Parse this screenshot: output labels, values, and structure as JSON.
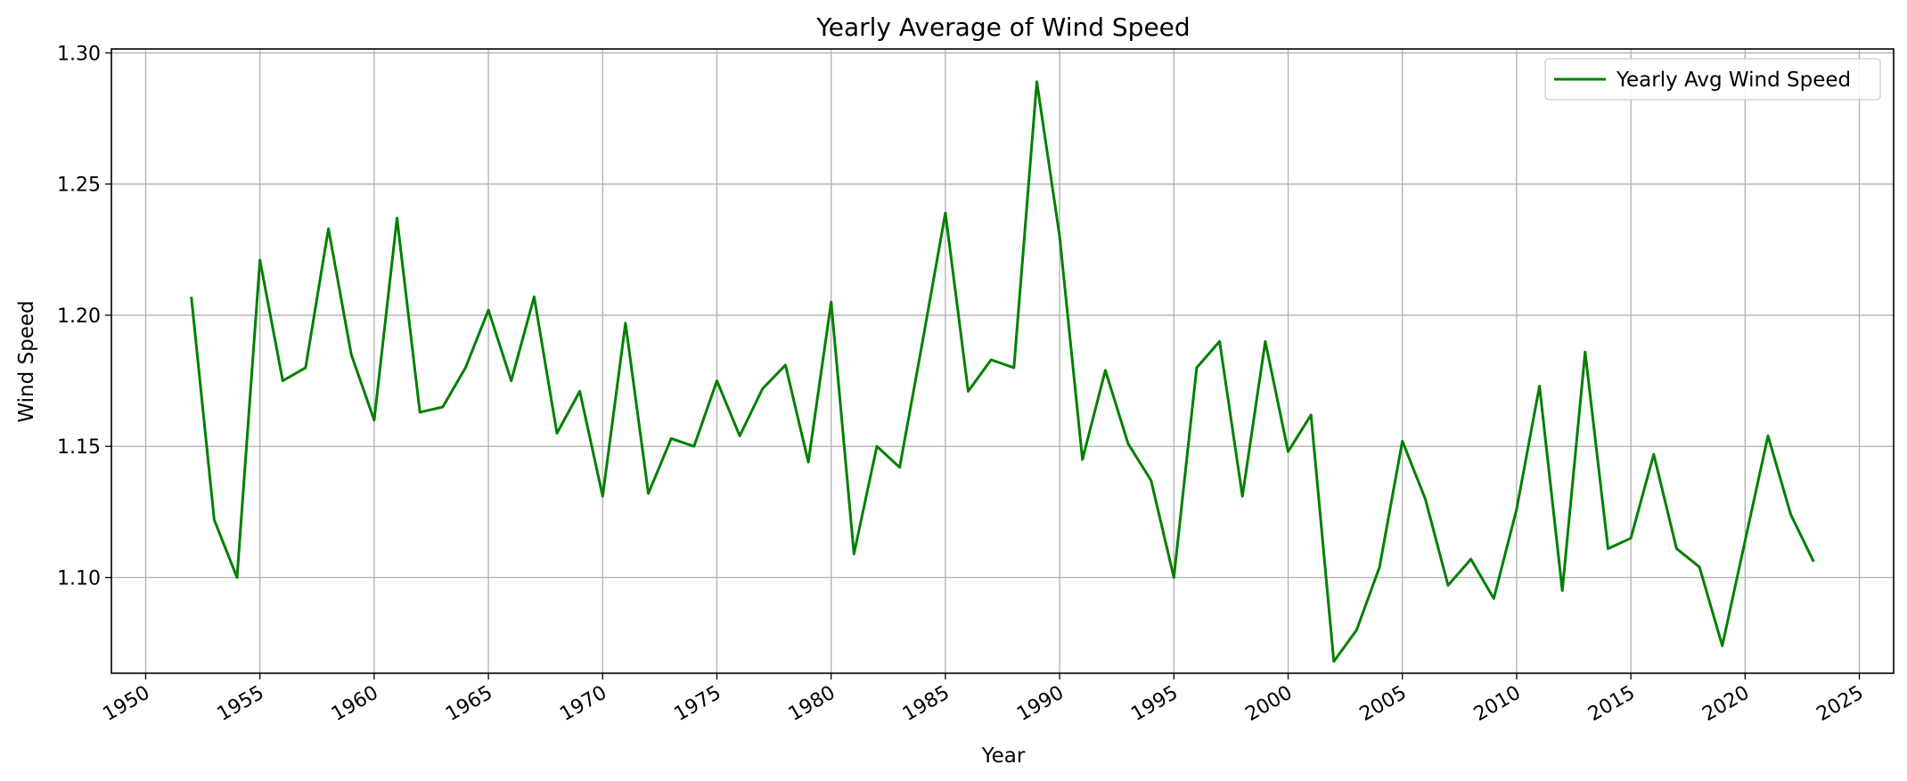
{
  "chart_data": {
    "type": "line",
    "title": "Yearly Average of Wind Speed",
    "xlabel": "Year",
    "ylabel": "Wind Speed",
    "xlim": [
      1948.5,
      2026.5
    ],
    "ylim": [
      1.0635,
      1.3015
    ],
    "xticks": [
      1950,
      1955,
      1960,
      1965,
      1970,
      1975,
      1980,
      1985,
      1990,
      1995,
      2000,
      2005,
      2010,
      2015,
      2020,
      2025
    ],
    "yticks": [
      1.1,
      1.15,
      1.2,
      1.25,
      1.3
    ],
    "ytick_labels": [
      "1.10",
      "1.15",
      "1.20",
      "1.25",
      "1.30"
    ],
    "grid": true,
    "legend_position": "top-right",
    "colors": {
      "line": "#008000",
      "grid": "#b0b0b0"
    },
    "x": [
      1952,
      1953,
      1954,
      1955,
      1956,
      1957,
      1958,
      1959,
      1960,
      1961,
      1962,
      1963,
      1964,
      1965,
      1966,
      1967,
      1968,
      1969,
      1970,
      1971,
      1972,
      1973,
      1974,
      1975,
      1976,
      1977,
      1978,
      1979,
      1980,
      1981,
      1982,
      1983,
      1984,
      1985,
      1986,
      1987,
      1988,
      1989,
      1990,
      1991,
      1992,
      1993,
      1994,
      1995,
      1996,
      1997,
      1998,
      1999,
      2000,
      2001,
      2002,
      2003,
      2004,
      2005,
      2006,
      2007,
      2008,
      2009,
      2010,
      2011,
      2012,
      2013,
      2014,
      2015,
      2016,
      2017,
      2018,
      2019,
      2020,
      2021,
      2022,
      2023
    ],
    "series": [
      {
        "name": "Yearly Avg Wind Speed",
        "values": [
          1.207,
          1.122,
          1.1,
          1.221,
          1.175,
          1.18,
          1.233,
          1.185,
          1.16,
          1.237,
          1.163,
          1.165,
          1.18,
          1.202,
          1.175,
          1.207,
          1.155,
          1.171,
          1.131,
          1.197,
          1.132,
          1.153,
          1.15,
          1.175,
          1.154,
          1.172,
          1.181,
          1.144,
          1.205,
          1.109,
          1.15,
          1.142,
          1.19,
          1.239,
          1.171,
          1.183,
          1.18,
          1.289,
          1.23,
          1.145,
          1.179,
          1.151,
          1.137,
          1.1,
          1.18,
          1.19,
          1.131,
          1.19,
          1.148,
          1.162,
          1.068,
          1.08,
          1.104,
          1.152,
          1.13,
          1.097,
          1.107,
          1.092,
          1.126,
          1.173,
          1.095,
          1.186,
          1.111,
          1.115,
          1.147,
          1.111,
          1.104,
          1.074,
          1.114,
          1.154,
          1.124,
          1.106
        ]
      }
    ]
  }
}
